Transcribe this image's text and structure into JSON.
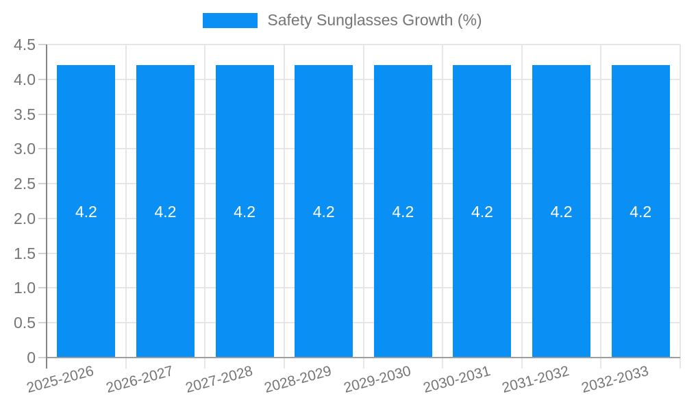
{
  "chart_data": {
    "type": "bar",
    "title": "Safety Sunglasses Growth (%)",
    "legend_label": "Safety Sunglasses Growth (%)",
    "legend_position": "top",
    "categories": [
      "2025-2026",
      "2026-2027",
      "2027-2028",
      "2028-2029",
      "2029-2030",
      "2030-2031",
      "2031-2032",
      "2032-2033"
    ],
    "values": [
      4.2,
      4.2,
      4.2,
      4.2,
      4.2,
      4.2,
      4.2,
      4.2
    ],
    "bar_value_labels": [
      "4.2",
      "4.2",
      "4.2",
      "4.2",
      "4.2",
      "4.2",
      "4.2",
      "4.2"
    ],
    "xlabel": "",
    "ylabel": "",
    "ylim": [
      0,
      4.5
    ],
    "ytick_labels": [
      "0",
      "0.5",
      "1.0",
      "1.5",
      "2.0",
      "2.5",
      "3.0",
      "3.5",
      "4.0",
      "4.5"
    ],
    "grid": "on",
    "colors": {
      "bar": "#0a90f5",
      "grid": "#e6e6e6",
      "tick": "#d2d2d2",
      "x_axis": "#9e9e9e",
      "y_axis": "#858585",
      "text": "#757575",
      "bar_value_text": "#ffffff",
      "background": "#ffffff"
    }
  }
}
